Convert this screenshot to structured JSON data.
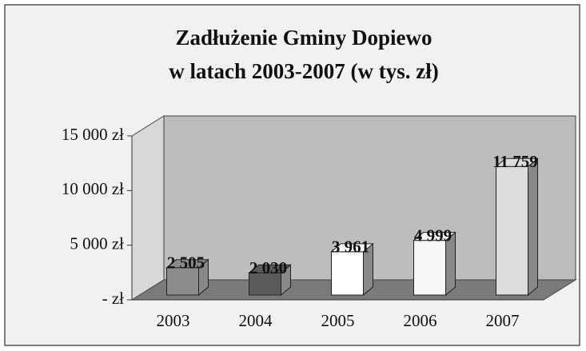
{
  "chart_data": {
    "type": "bar3d",
    "title": [
      "Zadłużenie Gminy Dopiewo",
      "w latach 2003-2007 (w tys. zł)"
    ],
    "categories": [
      "2003",
      "2004",
      "2005",
      "2006",
      "2007"
    ],
    "values": [
      2505,
      2030,
      3961,
      4999,
      11759
    ],
    "value_labels": [
      "2 505",
      "2 030",
      "3 961",
      "4 999",
      "11 759"
    ],
    "colors": [
      "#8c8c8c",
      "#5a5a5a",
      "#ffffff",
      "#f7f7f7",
      "#dcdcdc"
    ],
    "ylim": [
      0,
      15000
    ],
    "yticks": [
      {
        "value": 0,
        "label": "- zł"
      },
      {
        "value": 5000,
        "label": "5 000 zł"
      },
      {
        "value": 10000,
        "label": "10 000 zł"
      },
      {
        "value": 15000,
        "label": "15 000 zł"
      }
    ],
    "grid": false
  }
}
